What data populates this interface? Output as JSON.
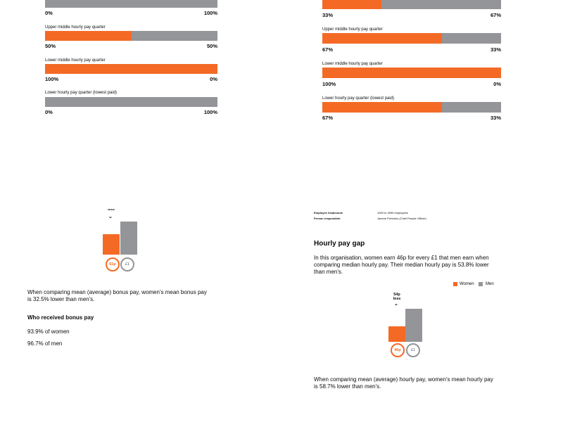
{
  "colors": {
    "women": "#f46a25",
    "men": "#949599"
  },
  "left_quarters": [
    {
      "label": "",
      "women_pct": 0,
      "women_label": "0%",
      "men_label": "100%"
    },
    {
      "label": "Upper middle hourly pay quarter",
      "women_pct": 50,
      "women_label": "50%",
      "men_label": "50%"
    },
    {
      "label": "Lower middle hourly pay quarter",
      "women_pct": 100,
      "women_label": "100%",
      "men_label": "0%"
    },
    {
      "label": "Lower hourly pay quarter (lowest paid)",
      "women_pct": 0,
      "women_label": "0%",
      "men_label": "100%"
    }
  ],
  "right_quarters": [
    {
      "label": "",
      "women_pct": 33,
      "women_label": "33%",
      "men_label": "67%"
    },
    {
      "label": "Upper middle hourly pay quarter",
      "women_pct": 67,
      "women_label": "67%",
      "men_label": "33%"
    },
    {
      "label": "Lower middle hourly pay quarter",
      "women_pct": 100,
      "women_label": "100%",
      "men_label": "0%"
    },
    {
      "label": "Lower hourly pay quarter (lowest paid)",
      "women_pct": 67,
      "women_label": "67%",
      "men_label": "33%"
    }
  ],
  "bonus": {
    "less_label": "less",
    "women_value": 0.61,
    "men_value": 1,
    "women_circle": "61p",
    "men_circle": "£1",
    "mean_text": "When comparing mean (average) bonus pay, women's mean bonus pay is 32.5% lower than men's.",
    "who_heading": "Who received bonus pay",
    "women_received": "93.9% of women",
    "men_received": "96.7% of men"
  },
  "employer": {
    "headcount_label": "Employee headcount:",
    "headcount_value": "1000 to 4999 employees",
    "person_label": "Person responsible:",
    "person_value": "Janene Pretorius (Chief People Officer)"
  },
  "hourly": {
    "heading": "Hourly pay gap",
    "intro": "In this organisation, women earn 46p for every £1 that men earn when comparing median hourly pay. Their median hourly pay is 53.8% lower than men's.",
    "legend_women": "Women",
    "legend_men": "Men",
    "less_line1": "54p",
    "less_line2": "less",
    "women_value": 0.46,
    "men_value": 1,
    "women_circle": "46p",
    "men_circle": "£1",
    "mean_text": "When comparing mean (average) hourly pay, women's mean hourly pay is 58.7% lower than men's."
  }
}
